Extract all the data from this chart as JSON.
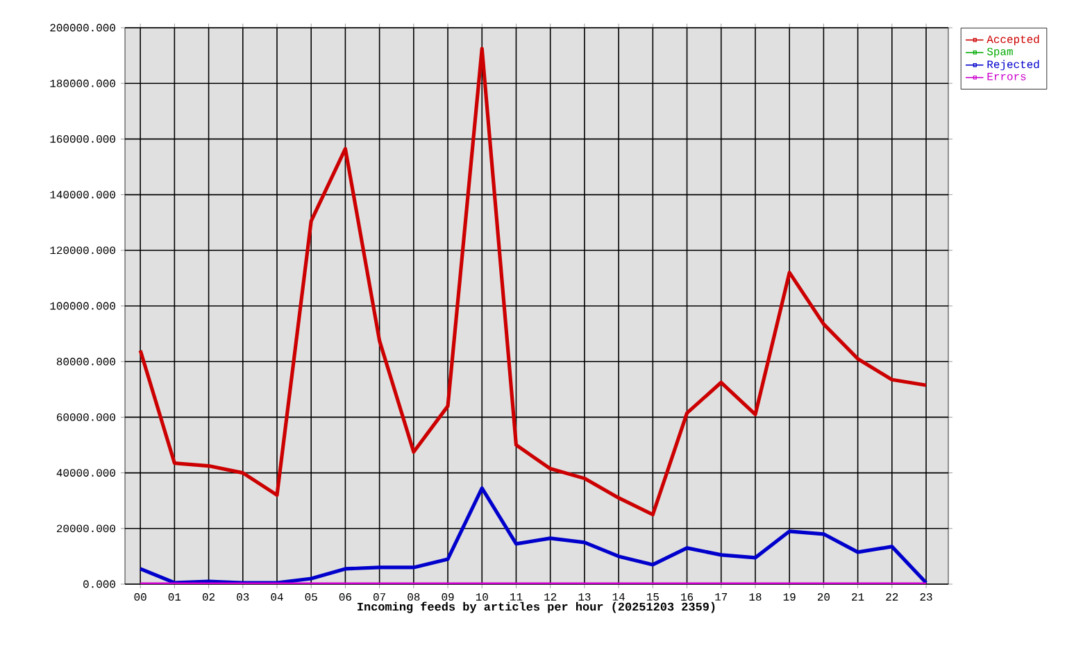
{
  "chart_data": {
    "type": "line",
    "xlabel": "Incoming feeds by articles per hour (20251203 2359)",
    "categories": [
      "00",
      "01",
      "02",
      "03",
      "04",
      "05",
      "06",
      "07",
      "08",
      "09",
      "10",
      "11",
      "12",
      "13",
      "14",
      "15",
      "16",
      "17",
      "18",
      "19",
      "20",
      "21",
      "22",
      "23"
    ],
    "series": [
      {
        "name": "Accepted",
        "color": "#cc0000",
        "values": [
          84000,
          43500,
          42500,
          40000,
          32000,
          130500,
          156500,
          87500,
          47500,
          64000,
          192500,
          50000,
          41500,
          38000,
          31000,
          25000,
          61500,
          72500,
          61000,
          112000,
          93500,
          81000,
          73500,
          71500
        ]
      },
      {
        "name": "Spam",
        "color": "#00aa00",
        "values": [
          null,
          null,
          null,
          null,
          null,
          null,
          null,
          null,
          null,
          null,
          null,
          null,
          null,
          null,
          null,
          null,
          null,
          null,
          null,
          null,
          null,
          null,
          null,
          null
        ]
      },
      {
        "name": "Rejected",
        "color": "#0000cc",
        "values": [
          5500,
          500,
          1000,
          500,
          500,
          2000,
          5500,
          6000,
          6000,
          9000,
          34500,
          14500,
          16500,
          15000,
          10000,
          7000,
          13000,
          10500,
          9500,
          19000,
          18000,
          11500,
          13500,
          500
        ]
      },
      {
        "name": "Errors",
        "color": "#cc00cc",
        "values": [
          0,
          0,
          0,
          0,
          0,
          0,
          0,
          0,
          0,
          0,
          0,
          0,
          0,
          0,
          0,
          0,
          0,
          0,
          0,
          0,
          0,
          0,
          0,
          0
        ]
      }
    ],
    "ylim": [
      0,
      200000
    ],
    "yticks": [
      {
        "value": 0,
        "label": "0.000"
      },
      {
        "value": 20000,
        "label": "20000.000"
      },
      {
        "value": 40000,
        "label": "40000.000"
      },
      {
        "value": 60000,
        "label": "60000.000"
      },
      {
        "value": 80000,
        "label": "80000.000"
      },
      {
        "value": 100000,
        "label": "100000.000"
      },
      {
        "value": 120000,
        "label": "120000.000"
      },
      {
        "value": 140000,
        "label": "140000.000"
      },
      {
        "value": 160000,
        "label": "160000.000"
      },
      {
        "value": 180000,
        "label": "180000.000"
      },
      {
        "value": 200000,
        "label": "200000.000"
      }
    ],
    "grid": true,
    "legend": "top right",
    "marker": "none",
    "line_style": "solid"
  }
}
